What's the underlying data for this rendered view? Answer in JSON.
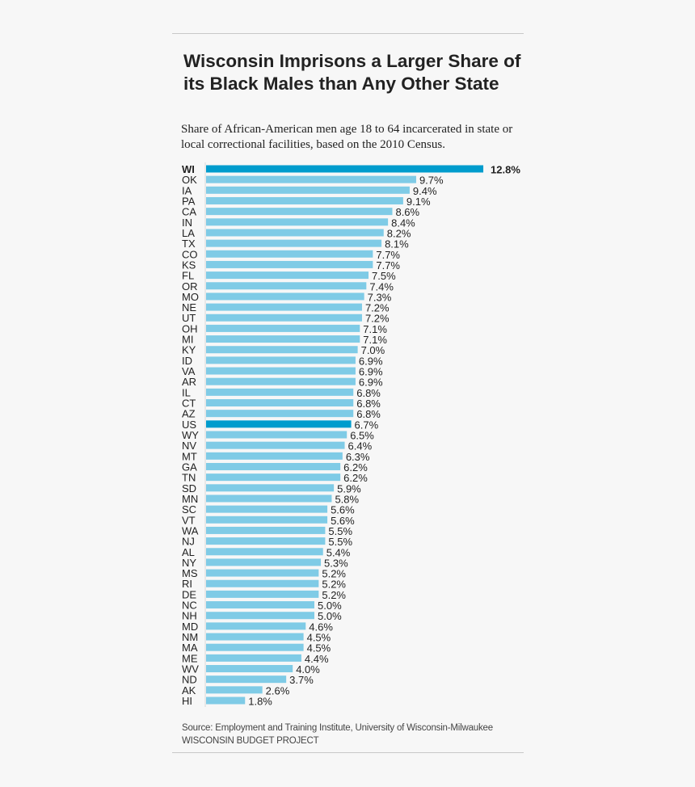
{
  "title": "Wisconsin Imprisons a Larger Share of its Black Males than Any Other State",
  "subtitle": "Share of African-American men age 18 to 64 incarcerated in state or local correctional facilities, based on the 2010 Census.",
  "source": "Source: Employment and Training Institute, University of Wisconsin-Milwaukee",
  "publisher": "WISCONSIN BUDGET PROJECT",
  "colors": {
    "highlight": "#009ccd",
    "bar": "#7fcbe6",
    "text": "#222222"
  },
  "chart_data": {
    "type": "bar",
    "orientation": "horizontal",
    "title": "Wisconsin Imprisons a Larger Share of its Black Males than Any Other State",
    "xlabel": "",
    "ylabel": "",
    "value_suffix": "%",
    "highlighted": [
      "WI",
      "US"
    ],
    "categories": [
      "WI",
      "OK",
      "IA",
      "PA",
      "CA",
      "IN",
      "LA",
      "TX",
      "CO",
      "KS",
      "FL",
      "OR",
      "MO",
      "NE",
      "UT",
      "OH",
      "MI",
      "KY",
      "ID",
      "VA",
      "AR",
      "IL",
      "CT",
      "AZ",
      "US",
      "WY",
      "NV",
      "MT",
      "GA",
      "TN",
      "SD",
      "MN",
      "SC",
      "VT",
      "WA",
      "NJ",
      "AL",
      "NY",
      "MS",
      "RI",
      "DE",
      "NC",
      "NH",
      "MD",
      "NM",
      "MA",
      "ME",
      "WV",
      "ND",
      "AK",
      "HI"
    ],
    "values": [
      12.8,
      9.7,
      9.4,
      9.1,
      8.6,
      8.4,
      8.2,
      8.1,
      7.7,
      7.7,
      7.5,
      7.4,
      7.3,
      7.2,
      7.2,
      7.1,
      7.1,
      7.0,
      6.9,
      6.9,
      6.9,
      6.8,
      6.8,
      6.8,
      6.7,
      6.5,
      6.4,
      6.3,
      6.2,
      6.2,
      5.9,
      5.8,
      5.6,
      5.6,
      5.5,
      5.5,
      5.4,
      5.3,
      5.2,
      5.2,
      5.2,
      5.0,
      5.0,
      4.6,
      4.5,
      4.5,
      4.4,
      4.0,
      3.7,
      2.6,
      1.8
    ],
    "grid": false,
    "legend": "none"
  }
}
